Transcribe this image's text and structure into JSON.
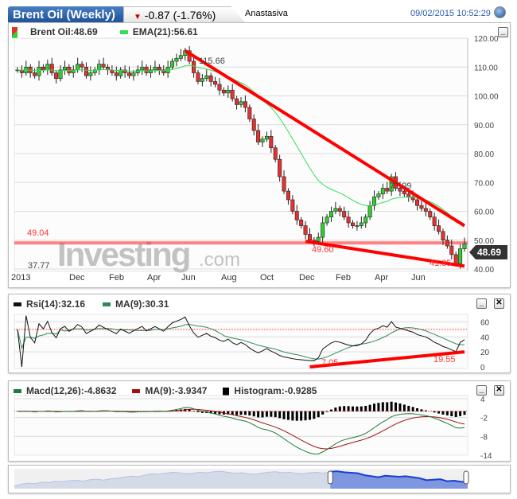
{
  "header": {
    "title": "Brent Oil (Weekly)",
    "change": "-0.87 (-1.76%)",
    "user": "Anastasiva",
    "datetime": "09/02/2015 10:52:29"
  },
  "colors": {
    "up": "#33cc33",
    "down": "#e53030",
    "ema": "#33dd55",
    "trend": "#ff0000",
    "rsi": "#111111",
    "rsi_ma": "#2e8b57",
    "macd": "#1f7a3f",
    "macd_ma": "#a01010",
    "nav_fill": "#7f96e0",
    "nav_line": "#1a3fd0"
  },
  "main": {
    "legend_price": "Brent Oil:48.69",
    "legend_ema": "EMA(21):56.61",
    "last_price": "48.69",
    "y_ticks": [
      "120.00",
      "110.00",
      "100.00",
      "90.00",
      "80.00",
      "70.00",
      "60.00",
      "50.00",
      "40.00"
    ],
    "x_ticks": [
      "2013",
      "Dec",
      "Feb",
      "Apr",
      "Jun",
      "Aug",
      "Oct",
      "Dec",
      "Feb",
      "Apr",
      "Jun"
    ],
    "annotations": {
      "high": "115.66",
      "high2": "71.99",
      "low1": "49.60",
      "low2": "41.85",
      "level": "49.04",
      "min": "37.77"
    },
    "watermark": "Investing.com"
  },
  "chart_data": {
    "type": "candlestick",
    "ylim": [
      40,
      120
    ],
    "ema_period": 21,
    "level": 49.04,
    "closes": [
      109,
      108,
      110,
      108,
      107,
      110,
      109,
      111,
      108,
      106,
      109,
      110,
      108,
      109,
      111,
      110,
      107,
      108,
      109,
      111,
      110,
      109,
      108,
      107,
      109,
      108,
      107,
      108,
      109,
      110,
      108,
      109,
      110,
      109,
      108,
      110,
      112,
      113,
      114,
      115.66,
      112,
      108,
      105,
      106,
      107,
      105,
      104,
      102,
      101,
      102,
      99,
      97,
      98,
      96,
      92,
      88,
      84,
      85,
      86,
      82,
      78,
      72,
      67,
      64,
      60,
      57,
      55,
      52,
      50,
      49.6,
      51,
      56,
      58,
      60,
      61,
      60,
      58,
      56,
      55,
      55,
      56,
      58,
      62,
      65,
      66,
      68,
      67,
      71.99,
      68,
      67,
      66,
      65,
      64,
      62,
      61,
      60,
      58,
      55,
      53,
      50,
      48,
      45,
      41.85,
      47,
      48.69
    ],
    "trendlines": [
      {
        "from": [
          39,
          115.66
        ],
        "to": [
          104,
          55
        ]
      },
      {
        "from": [
          67,
          49.6
        ],
        "to": [
          104,
          41
        ]
      }
    ]
  },
  "rsi": {
    "legend": "Rsi(14):32.16",
    "legend_ma": "MA(9):30.31",
    "y_ticks": [
      "60",
      "40",
      "20",
      "0"
    ],
    "annotations": {
      "low": "7.05",
      "recent": "19.55"
    },
    "trendline": {
      "from": [
        68,
        0
      ],
      "to": [
        104,
        20
      ]
    }
  },
  "macd": {
    "legend": "Macd(12,26):-4.8632",
    "legend_ma": "MA(9):-3.9347",
    "legend_hist": "Histogram:-0.9285",
    "y_ticks": [
      "4",
      "-2",
      "-8",
      "-14"
    ]
  },
  "navigator": {
    "values": [
      60,
      64,
      66,
      65,
      68,
      67,
      70,
      69,
      71,
      72,
      70,
      73,
      74,
      72,
      75,
      76,
      78,
      80,
      79,
      82,
      85,
      84,
      86,
      88,
      87,
      85,
      86,
      88,
      87,
      89,
      90,
      88,
      86,
      87,
      85,
      84,
      86,
      88,
      89,
      87,
      88,
      86,
      85,
      87,
      88,
      86,
      89,
      90,
      88,
      87,
      86,
      82,
      80,
      78,
      81,
      80,
      79,
      80,
      78,
      76,
      72,
      73,
      74,
      70,
      71,
      69,
      68
    ]
  }
}
